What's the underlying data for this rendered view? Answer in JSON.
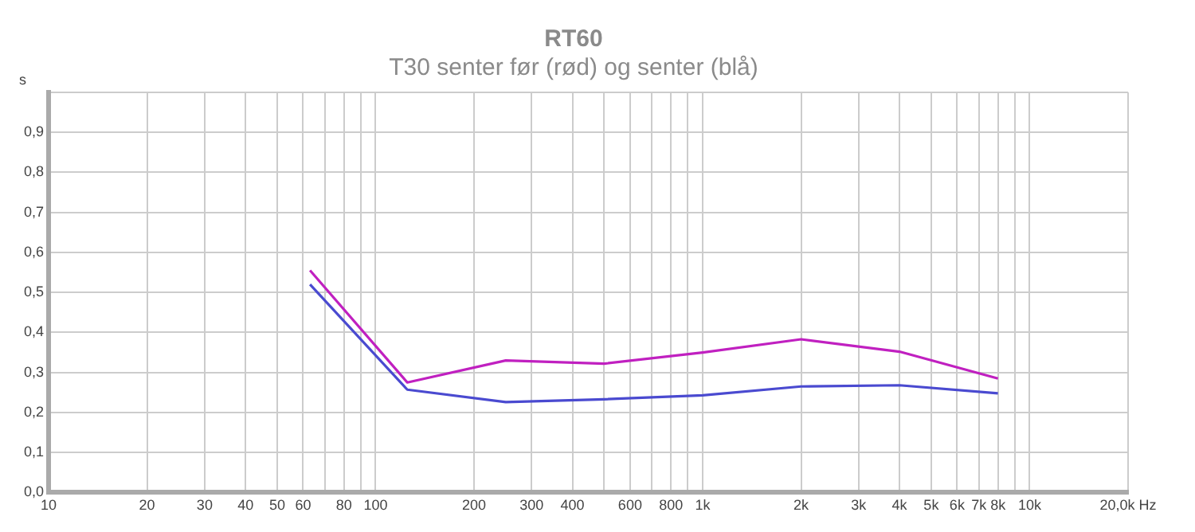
{
  "chart_data": {
    "type": "line",
    "title": "RT60",
    "subtitle": "T30 senter før (rød) og senter (blå)",
    "ylabel": "s",
    "x": [
      63,
      125,
      250,
      500,
      1000,
      2000,
      4000,
      8000
    ],
    "series": [
      {
        "color": "#c020c0",
        "values": [
          0.555,
          0.275,
          0.33,
          0.322,
          0.35,
          0.383,
          0.352,
          0.285
        ]
      },
      {
        "color": "#4a4ad0",
        "values": [
          0.52,
          0.257,
          0.226,
          0.233,
          0.243,
          0.265,
          0.268,
          0.248
        ]
      }
    ],
    "xlim": [
      10,
      20000
    ],
    "xticks": [
      10,
      20,
      30,
      40,
      50,
      60,
      {
        "value": 70,
        "label": null
      },
      80,
      {
        "value": 90,
        "label": null
      },
      100,
      200,
      300,
      400,
      {
        "value": 500,
        "label": null
      },
      600,
      {
        "value": 700,
        "label": null
      },
      800,
      {
        "value": 900,
        "label": null
      },
      {
        "value": 1000,
        "label": "1k"
      },
      {
        "value": 2000,
        "label": "2k"
      },
      {
        "value": 3000,
        "label": "3k"
      },
      {
        "value": 4000,
        "label": "4k"
      },
      {
        "value": 5000,
        "label": "5k"
      },
      {
        "value": 6000,
        "label": "6k"
      },
      {
        "value": 7000,
        "label": "7k"
      },
      {
        "value": 8000,
        "label": "8k"
      },
      {
        "value": 9000,
        "label": null
      },
      {
        "value": 10000,
        "label": "10k"
      },
      {
        "value": 20000,
        "label": "20,0k Hz"
      }
    ],
    "ylim": [
      0,
      1
    ],
    "yticks": [
      {
        "value": 0,
        "label": "0,0"
      },
      {
        "value": 0.1,
        "label": "0,1"
      },
      {
        "value": 0.2,
        "label": "0,2"
      },
      {
        "value": 0.3,
        "label": "0,3"
      },
      {
        "value": 0.4,
        "label": "0,4"
      },
      {
        "value": 0.5,
        "label": "0,5"
      },
      {
        "value": 0.6,
        "label": "0,6"
      },
      {
        "value": 0.7,
        "label": "0,7"
      },
      {
        "value": 0.8,
        "label": "0,8"
      },
      {
        "value": 0.9,
        "label": "0,9"
      },
      {
        "value": 1,
        "label": null
      }
    ],
    "log": "x",
    "grid": true,
    "legend": false,
    "marker": "none",
    "line_style": "solid"
  }
}
